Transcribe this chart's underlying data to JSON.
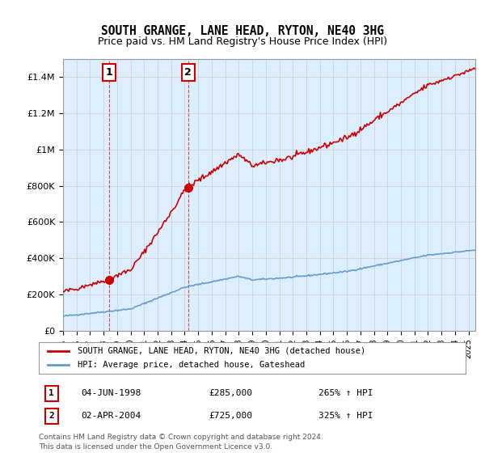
{
  "title": "SOUTH GRANGE, LANE HEAD, RYTON, NE40 3HG",
  "subtitle": "Price paid vs. HM Land Registry's House Price Index (HPI)",
  "legend_line1": "SOUTH GRANGE, LANE HEAD, RYTON, NE40 3HG (detached house)",
  "legend_line2": "HPI: Average price, detached house, Gateshead",
  "transaction1_label": "1",
  "transaction1_date": "04-JUN-1998",
  "transaction1_price": "£285,000",
  "transaction1_hpi": "265% ↑ HPI",
  "transaction1_year": 1998.43,
  "transaction1_value": 285000,
  "transaction2_label": "2",
  "transaction2_date": "02-APR-2004",
  "transaction2_price": "£725,000",
  "transaction2_hpi": "325% ↑ HPI",
  "transaction2_year": 2004.25,
  "transaction2_value": 725000,
  "footnote1": "Contains HM Land Registry data © Crown copyright and database right 2024.",
  "footnote2": "This data is licensed under the Open Government Licence v3.0.",
  "red_color": "#cc0000",
  "blue_color": "#6699cc",
  "background_color": "#ddeeff",
  "plot_bg_color": "#ffffff",
  "grid_color": "#cccccc",
  "ylim_max": 1500000,
  "xlim_min": 1995.0,
  "xlim_max": 2025.5
}
